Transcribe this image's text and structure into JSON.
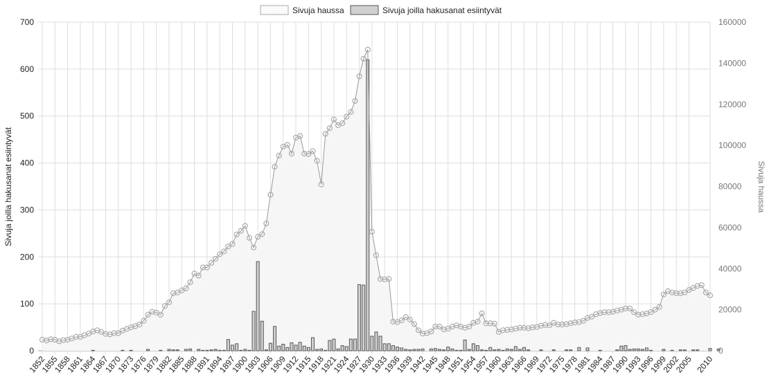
{
  "chart_data": {
    "type": "bar+line",
    "legend": {
      "placement": "top",
      "entries": [
        "Sivuja haussa",
        "Sivuja joilla hakusanat esiintyvät"
      ]
    },
    "ylabel_left": "Sivuja joilla hakusanat esiintyvät",
    "ylabel_right": "Sivuja haussa",
    "ylim_left": [
      0,
      700
    ],
    "ylim_right": [
      0,
      160000
    ],
    "yticks_left": [
      "0",
      "100",
      "200",
      "300",
      "400",
      "500",
      "600",
      "700"
    ],
    "yticks_right": [
      "0",
      "20000",
      "40000",
      "60000",
      "80000",
      "100000",
      "120000",
      "140000",
      "160000"
    ],
    "xlim": [
      1852,
      2010
    ],
    "xticks": [
      "1852",
      "1855",
      "1858",
      "1861",
      "1864",
      "1867",
      "1870",
      "1873",
      "1876",
      "1879",
      "1882",
      "1885",
      "1888",
      "1891",
      "1894",
      "1897",
      "1900",
      "1903",
      "1906",
      "1909",
      "1912",
      "1915",
      "1918",
      "1921",
      "1924",
      "1927",
      "1930",
      "1933",
      "1936",
      "1939",
      "1942",
      "1945",
      "1948",
      "1951",
      "1954",
      "1957",
      "1960",
      "1963",
      "1966",
      "1969",
      "1972",
      "1975",
      "1978",
      "1981",
      "1984",
      "1987",
      "1990",
      "1993",
      "1996",
      "1999",
      "2002",
      "2005",
      "2010"
    ],
    "grid": true,
    "colors": {
      "bar_fill": "#d0d0d0",
      "bar_stroke": "#555555",
      "line": "#999999",
      "area": "#f6f6f6",
      "grid": "#dddddd"
    },
    "x_start": 1852,
    "series": [
      {
        "name": "Sivuja joilla hakusanat esiintyvät",
        "type": "bar",
        "axis": "left",
        "values": [
          0,
          0,
          0,
          0,
          0,
          0,
          0,
          0,
          0,
          0,
          0,
          0,
          1,
          0,
          0,
          0,
          0,
          0,
          0,
          1,
          0,
          1,
          0,
          0,
          0,
          3,
          0,
          0,
          1,
          0,
          3,
          2,
          2,
          0,
          3,
          4,
          0,
          3,
          1,
          1,
          2,
          3,
          1,
          1,
          24,
          12,
          15,
          1,
          3,
          1,
          84,
          190,
          63,
          2,
          16,
          52,
          10,
          14,
          7,
          17,
          12,
          18,
          10,
          7,
          28,
          3,
          4,
          1,
          22,
          25,
          4,
          11,
          9,
          25,
          25,
          141,
          140,
          620,
          31,
          40,
          31,
          15,
          15,
          11,
          8,
          6,
          3,
          2,
          3,
          3,
          4,
          0,
          4,
          5,
          3,
          2,
          8,
          4,
          1,
          1,
          23,
          3,
          15,
          11,
          2,
          1,
          7,
          2,
          3,
          1,
          4,
          3,
          9,
          3,
          7,
          2,
          0,
          0,
          2,
          0,
          0,
          2,
          0,
          0,
          2,
          2,
          0,
          7,
          0,
          6,
          0,
          0,
          1,
          0,
          0,
          0,
          2,
          10,
          11,
          3,
          4,
          4,
          3,
          6,
          1,
          0,
          0,
          3,
          0,
          1,
          0,
          2,
          2,
          0,
          2,
          2,
          0,
          0,
          5,
          0,
          4,
          0
        ]
      },
      {
        "name": "Sivuja haussa",
        "type": "line",
        "axis": "right",
        "values": [
          5400,
          5000,
          5600,
          5400,
          4600,
          5200,
          5400,
          6000,
          6800,
          6800,
          7600,
          8400,
          9400,
          10000,
          9200,
          8200,
          8000,
          8600,
          8600,
          9800,
          10600,
          11400,
          12000,
          12800,
          14600,
          17600,
          19000,
          18600,
          17600,
          21800,
          23600,
          28000,
          28400,
          29400,
          30400,
          33400,
          37600,
          36600,
          40600,
          40600,
          42800,
          44800,
          47000,
          48400,
          50800,
          52000,
          56600,
          58400,
          60800,
          55000,
          50300,
          55500,
          56800,
          62000,
          76000,
          89600,
          95000,
          99400,
          100200,
          96000,
          103800,
          104600,
          96000,
          95800,
          97200,
          92500,
          81000,
          105600,
          108400,
          112600,
          109800,
          110800,
          114000,
          116300,
          121600,
          133600,
          142200,
          146600,
          58000,
          46500,
          35000,
          34800,
          35000,
          14200,
          14000,
          14800,
          16400,
          15200,
          13000,
          10000,
          8400,
          8600,
          9400,
          11800,
          11800,
          10400,
          10800,
          11800,
          12400,
          11800,
          11200,
          11800,
          13600,
          14200,
          18200,
          13400,
          13400,
          13200,
          9200,
          10000,
          10200,
          10400,
          10800,
          11200,
          11200,
          11000,
          11400,
          11600,
          12200,
          12600,
          12400,
          13600,
          12800,
          12800,
          13000,
          13400,
          13800,
          14000,
          14600,
          16000,
          16600,
          17800,
          18400,
          18800,
          18800,
          19000,
          19600,
          20000,
          20600,
          20600,
          18800,
          17600,
          17800,
          18200,
          18800,
          20000,
          21400,
          27400,
          29000,
          28400,
          28000,
          28000,
          28400,
          29600,
          30600,
          31600,
          32000,
          28400,
          27000
        ]
      }
    ]
  }
}
